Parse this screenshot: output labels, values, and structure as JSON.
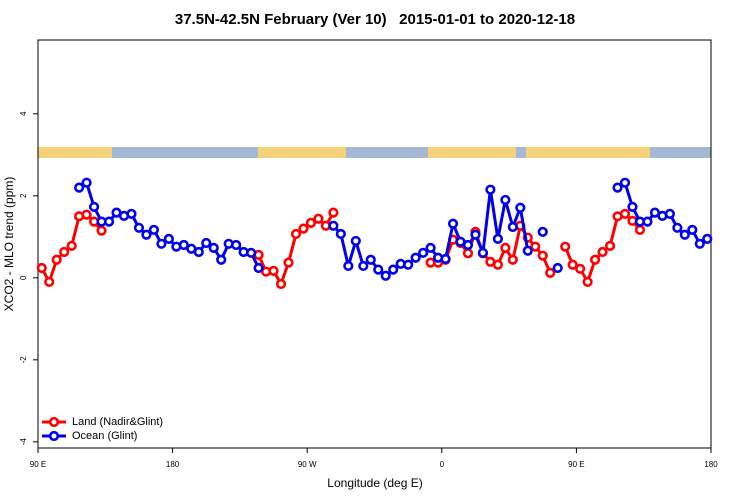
{
  "chart_data": {
    "type": "line",
    "title": "37.5N-42.5N February (Ver 10)   2015-01-01 to 2020-12-18",
    "x_label": "Longitude (deg E)",
    "y_label": "XCO2 - MLO trend (ppm)",
    "x": [
      92.5,
      97.5,
      102.5,
      107.5,
      112.5,
      117.5,
      122.5,
      127.5,
      132.5,
      137.5,
      142.5,
      147.5,
      152.5,
      157.5,
      162.5,
      167.5,
      172.5,
      177.5,
      182.5,
      187.5,
      192.5,
      197.5,
      202.5,
      207.5,
      212.5,
      217.5,
      222.5,
      227.5,
      232.5,
      237.5,
      242.5,
      247.5,
      252.5,
      257.5,
      262.5,
      267.5,
      272.5,
      277.5,
      282.5,
      287.5,
      292.5,
      297.5,
      302.5,
      307.5,
      312.5,
      317.5,
      322.5,
      327.5,
      332.5,
      337.5,
      342.5,
      347.5,
      352.5,
      357.5,
      362.5,
      367.5,
      372.5,
      377.5,
      382.5,
      387.5,
      392.5,
      397.5,
      402.5,
      407.5,
      412.5,
      417.5,
      422.5,
      427.5,
      432.5,
      437.5,
      442.5,
      447.5,
      452.5,
      457.5,
      462.5,
      467.5,
      472.5,
      477.5,
      482.5,
      487.5,
      492.5,
      497.5,
      502.5,
      507.5,
      512.5,
      517.5,
      522.5,
      527.5,
      532.5,
      537.5
    ],
    "series": [
      {
        "name": "Land (Nadir&Glint)",
        "color": "#ff0000",
        "values": [
          0.24,
          -0.1,
          0.44,
          0.63,
          0.78,
          1.5,
          1.54,
          1.37,
          1.15,
          null,
          null,
          null,
          null,
          null,
          null,
          null,
          null,
          null,
          null,
          null,
          null,
          null,
          null,
          null,
          null,
          null,
          null,
          null,
          null,
          0.56,
          0.15,
          0.17,
          -0.15,
          0.37,
          1.07,
          1.2,
          1.34,
          1.44,
          1.27,
          1.59,
          null,
          null,
          null,
          null,
          null,
          null,
          null,
          null,
          null,
          null,
          null,
          null,
          0.37,
          0.37,
          0.44,
          0.93,
          0.85,
          0.6,
          1.12,
          0.6,
          0.39,
          0.32,
          0.73,
          0.44,
          1.27,
          0.98,
          0.76,
          0.54,
          0.12,
          null,
          0.76,
          0.32,
          0.22,
          -0.1,
          0.44,
          0.63,
          0.78,
          1.5,
          1.56,
          1.39,
          1.17,
          null,
          null,
          null,
          null,
          null,
          null,
          null,
          null,
          null
        ]
      },
      {
        "name": "Ocean (Glint)",
        "color": "#0000ee",
        "values": [
          null,
          null,
          null,
          null,
          null,
          2.2,
          2.32,
          1.73,
          1.37,
          1.37,
          1.59,
          1.51,
          1.56,
          1.22,
          1.05,
          1.17,
          0.83,
          0.95,
          0.76,
          0.8,
          0.71,
          0.63,
          0.85,
          0.73,
          0.44,
          0.83,
          0.8,
          0.63,
          0.61,
          0.24,
          null,
          null,
          null,
          null,
          null,
          null,
          null,
          null,
          null,
          1.27,
          1.07,
          0.29,
          0.9,
          0.29,
          0.44,
          0.2,
          0.05,
          0.2,
          0.34,
          0.32,
          0.49,
          0.61,
          0.73,
          0.49,
          0.46,
          1.32,
          0.88,
          0.8,
          1.05,
          0.61,
          2.15,
          0.95,
          1.9,
          1.24,
          1.71,
          0.66,
          null,
          1.12,
          null,
          0.24,
          null,
          null,
          null,
          null,
          null,
          null,
          null,
          2.2,
          2.32,
          1.73,
          1.37,
          1.37,
          1.59,
          1.51,
          1.56,
          1.22,
          1.05,
          1.17,
          0.83,
          0.95
        ]
      }
    ],
    "xlim": [
      90,
      540
    ],
    "xticks": [
      {
        "value": 90,
        "label": "90 E"
      },
      180,
      {
        "value": 270,
        "label": "90 W"
      },
      {
        "value": 360,
        "label": "0"
      },
      {
        "value": 450,
        "label": "90 E"
      },
      {
        "value": 540,
        "label": "180"
      }
    ],
    "ylim": [
      -4.15,
      5.8
    ],
    "yticks": [
      -4,
      -2,
      0,
      2,
      4
    ],
    "legend": "bottom-left",
    "markers": true
  }
}
